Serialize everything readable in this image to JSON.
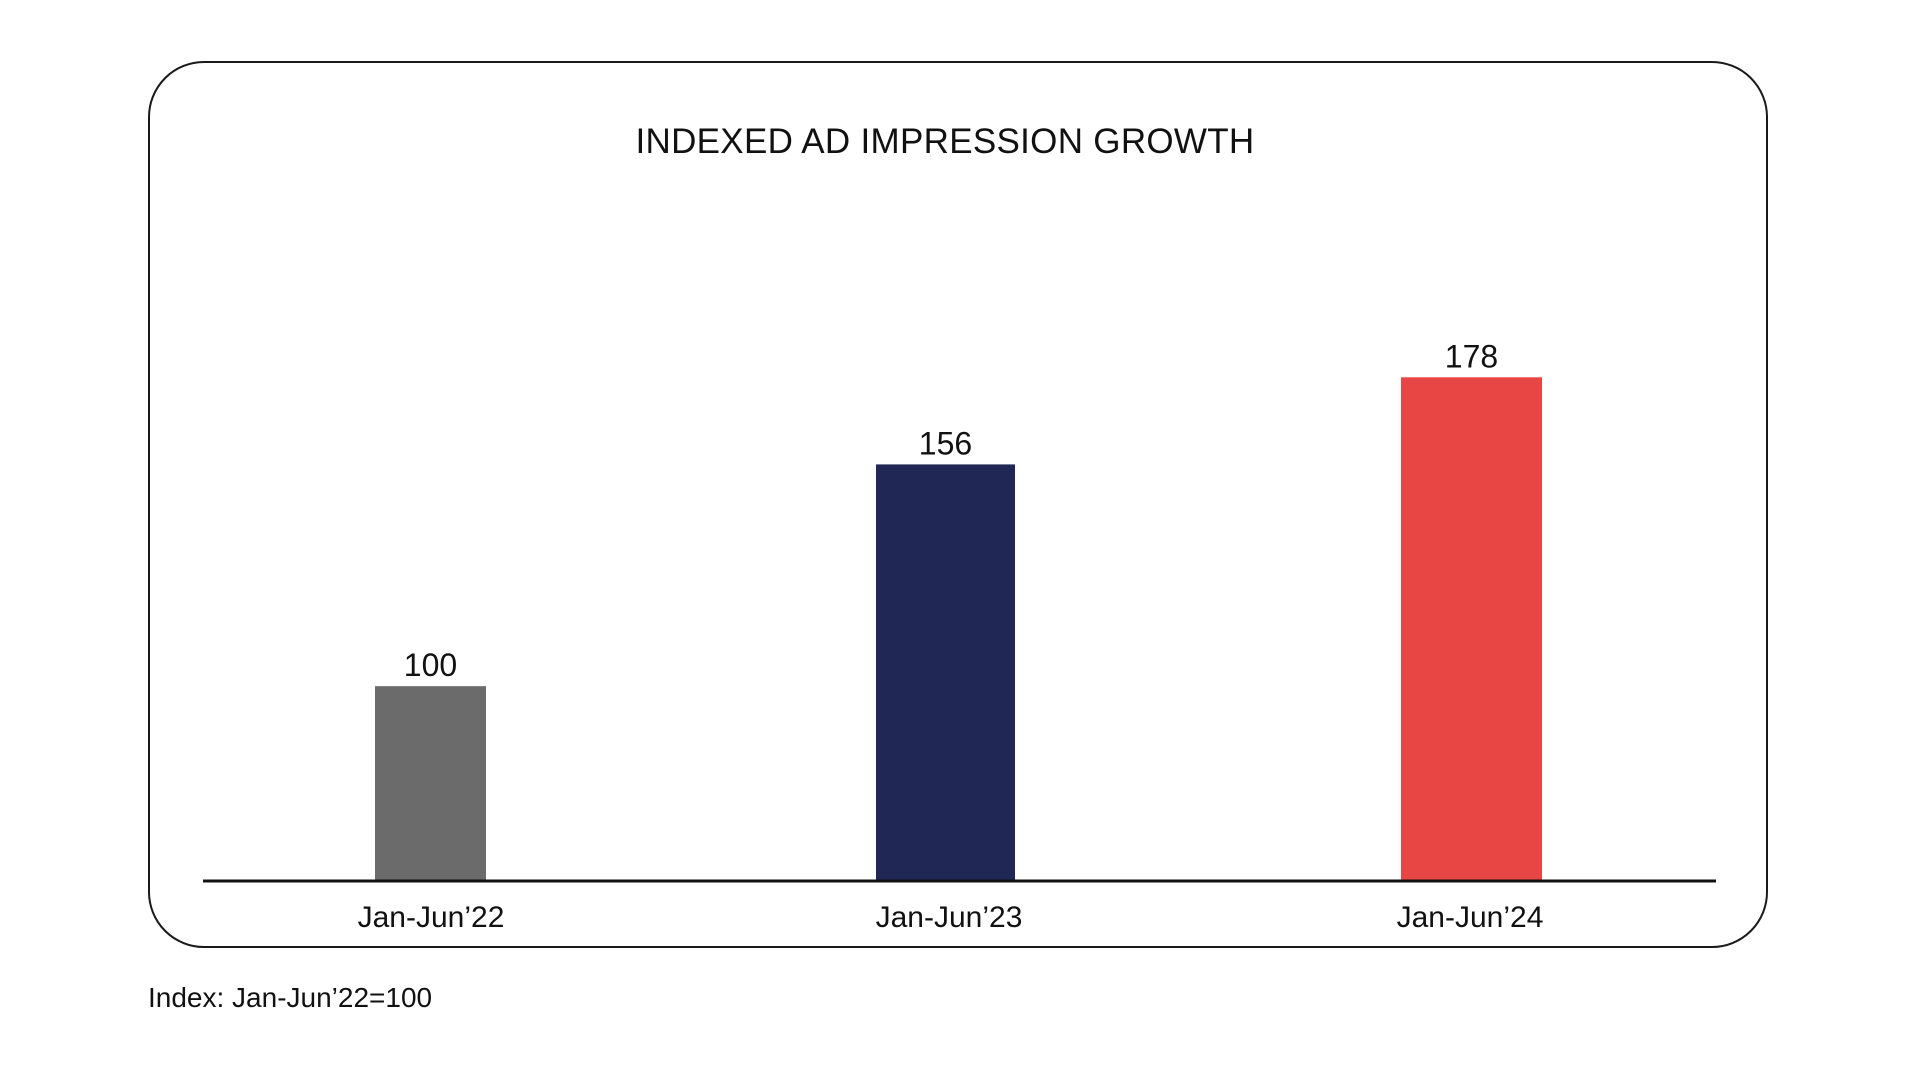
{
  "chart_data": {
    "type": "bar",
    "title": "INDEXED AD IMPRESSION GROWTH",
    "categories": [
      "Jan-Jun’22",
      "Jan-Jun’23",
      "Jan-Jun’24"
    ],
    "values": [
      100,
      156,
      178
    ],
    "data_labels": [
      "100",
      "156",
      "178"
    ],
    "colors": [
      "#6b6b6b",
      "#212754",
      "#e84644"
    ],
    "xlabel": "",
    "ylabel": "",
    "grid": false,
    "legend": "none",
    "footnote": "Index: Jan-Jun’22=100"
  }
}
